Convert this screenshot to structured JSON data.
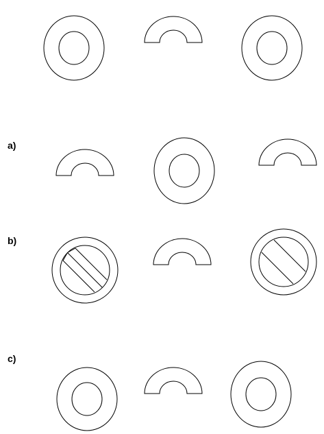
{
  "figure": {
    "stroke_color": "#000000",
    "fill_color": "#ffffff",
    "rows": [
      {
        "label": "",
        "shapes": [
          "ring-icon",
          "arch-icon",
          "ring-icon"
        ]
      },
      {
        "label": "a)",
        "shapes": [
          "arch-icon",
          "ring-icon",
          "arch-icon"
        ]
      },
      {
        "label": "b)",
        "shapes": [
          "crossed-ring-icon",
          "arch-icon",
          "crossed-ring-icon"
        ]
      },
      {
        "label": "c)",
        "shapes": [
          "ring-icon",
          "arch-icon",
          "ring-icon"
        ]
      }
    ]
  }
}
